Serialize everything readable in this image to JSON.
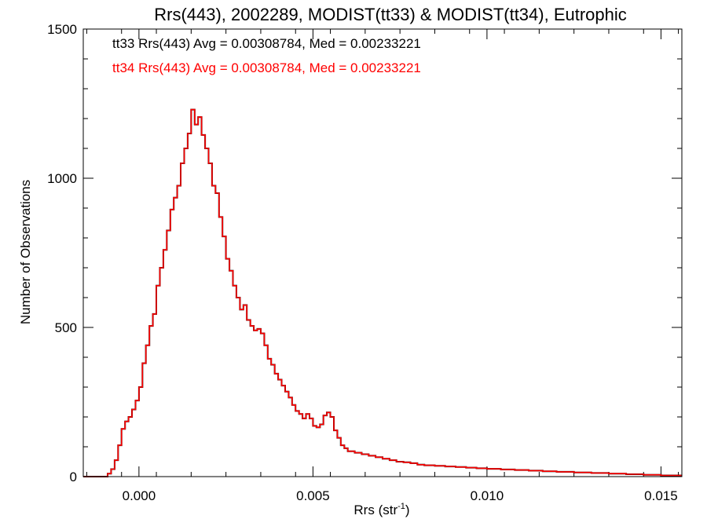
{
  "chart_data": {
    "type": "histogram",
    "title": "Rrs(443), 2002289, MODIST(tt33) & MODIST(tt34), Eutrophic",
    "xlabel_main": "Rrs (str",
    "xlabel_sup": "-1",
    "xlabel_close": ")",
    "ylabel": "Number of Observations",
    "xlim": [
      -0.0016,
      0.0156
    ],
    "ylim": [
      0,
      1500
    ],
    "xticks": [
      0.0,
      0.005,
      0.01,
      0.015
    ],
    "xtick_labels": [
      "0.000",
      "0.005",
      "0.010",
      "0.015"
    ],
    "yticks": [
      0,
      500,
      1000,
      1500
    ],
    "ytick_labels": [
      "0",
      "500",
      "1000",
      "1500"
    ],
    "annotations": [
      {
        "text": "tt33 Rrs(443) Avg = 0.00308784, Med = 0.00233221",
        "color": "#000000"
      },
      {
        "text": "tt34 Rrs(443) Avg = 0.00308784, Med = 0.00233221",
        "color": "#ff0000"
      }
    ],
    "series": [
      {
        "name": "tt33",
        "color": "#000000"
      },
      {
        "name": "tt34",
        "color": "#ff0000"
      }
    ],
    "bins": {
      "x": [
        -0.0016,
        -0.0011,
        -0.0009,
        -0.0008,
        -0.0007,
        -0.0006,
        -0.0005,
        -0.0004,
        -0.0003,
        -0.0002,
        -0.0001,
        0.0,
        0.0001,
        0.0002,
        0.0003,
        0.0004,
        0.0005,
        0.0006,
        0.0007,
        0.0008,
        0.0009,
        0.001,
        0.0011,
        0.0012,
        0.0013,
        0.0014,
        0.0015,
        0.0016,
        0.0017,
        0.0018,
        0.0019,
        0.002,
        0.0021,
        0.0022,
        0.0023,
        0.0024,
        0.0025,
        0.0026,
        0.0027,
        0.0028,
        0.0029,
        0.003,
        0.0031,
        0.0032,
        0.0033,
        0.0034,
        0.0035,
        0.0036,
        0.0037,
        0.0038,
        0.0039,
        0.004,
        0.0041,
        0.0042,
        0.0043,
        0.0044,
        0.0045,
        0.0046,
        0.0047,
        0.0048,
        0.0049,
        0.005,
        0.0051,
        0.0052,
        0.0053,
        0.0054,
        0.0055,
        0.0056,
        0.0057,
        0.0058,
        0.0059,
        0.006,
        0.0062,
        0.0064,
        0.0066,
        0.0068,
        0.007,
        0.0072,
        0.0074,
        0.0076,
        0.0078,
        0.008,
        0.0082,
        0.0085,
        0.0088,
        0.0091,
        0.0094,
        0.0097,
        0.01,
        0.0104,
        0.0108,
        0.0112,
        0.0116,
        0.012,
        0.0125,
        0.013,
        0.0135,
        0.014,
        0.0145,
        0.015
      ],
      "counts": [
        0,
        0,
        10,
        25,
        55,
        105,
        160,
        185,
        200,
        225,
        255,
        300,
        380,
        440,
        505,
        545,
        640,
        700,
        760,
        825,
        895,
        935,
        975,
        1050,
        1100,
        1150,
        1230,
        1180,
        1205,
        1145,
        1100,
        1050,
        975,
        950,
        870,
        805,
        730,
        690,
        640,
        600,
        560,
        575,
        525,
        505,
        490,
        495,
        480,
        440,
        395,
        375,
        345,
        325,
        305,
        285,
        265,
        240,
        220,
        210,
        195,
        210,
        195,
        170,
        165,
        175,
        205,
        215,
        200,
        155,
        130,
        105,
        95,
        85,
        80,
        75,
        70,
        65,
        60,
        55,
        50,
        48,
        45,
        40,
        38,
        36,
        34,
        32,
        30,
        28,
        26,
        24,
        22,
        20,
        18,
        16,
        14,
        12,
        10,
        8,
        6,
        4
      ]
    }
  }
}
